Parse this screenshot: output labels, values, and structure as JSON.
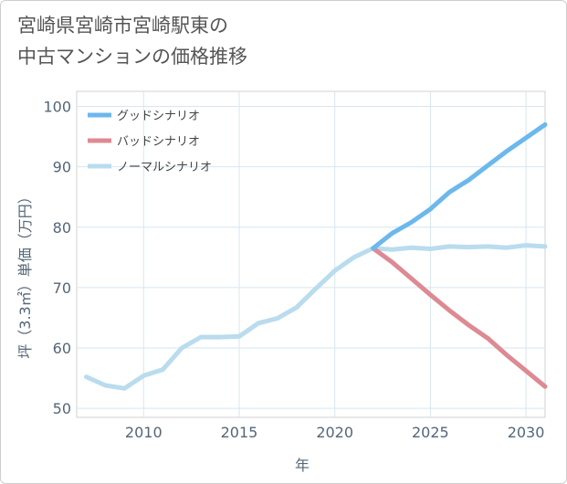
{
  "title_lines": [
    "宮崎県宮崎市宮崎駅東の",
    "中古マンションの価格推移"
  ],
  "chart_data": {
    "type": "line",
    "title": "宮崎県宮崎市宮崎駅東の中古マンションの価格推移",
    "xlabel": "年",
    "ylabel": "坪（3.3㎡）単価（万円）",
    "xlim": [
      2006.5,
      2031
    ],
    "ylim": [
      48.5,
      102.5
    ],
    "xticks": [
      2010,
      2015,
      2020,
      2025,
      2030
    ],
    "yticks": [
      50,
      60,
      70,
      80,
      90,
      100
    ],
    "grid": true,
    "legend_position": "top-left",
    "series": [
      {
        "name": "グッドシナリオ",
        "color": "#6cb8ec",
        "x": [
          2022,
          2023,
          2024,
          2025,
          2026,
          2027,
          2028,
          2029,
          2030,
          2031
        ],
        "values": [
          76.5,
          79.0,
          80.8,
          83.0,
          85.8,
          87.8,
          90.2,
          92.6,
          94.8,
          97.0
        ]
      },
      {
        "name": "バッドシナリオ",
        "color": "#dd8a93",
        "x": [
          2022,
          2023,
          2024,
          2025,
          2026,
          2027,
          2028,
          2029,
          2030,
          2031
        ],
        "values": [
          76.5,
          74.2,
          71.5,
          68.8,
          66.2,
          63.8,
          61.6,
          58.8,
          56.2,
          53.6
        ]
      },
      {
        "name": "ノーマルシナリオ",
        "color": "#b9dcee",
        "x": [
          2007,
          2008,
          2009,
          2010,
          2011,
          2012,
          2013,
          2014,
          2015,
          2016,
          2017,
          2018,
          2019,
          2020,
          2021,
          2022,
          2023,
          2024,
          2025,
          2026,
          2027,
          2028,
          2029,
          2030,
          2031
        ],
        "values": [
          55.2,
          53.8,
          53.3,
          55.4,
          56.4,
          60.0,
          61.8,
          61.8,
          61.9,
          64.1,
          64.9,
          66.7,
          69.8,
          72.8,
          75.0,
          76.5,
          76.3,
          76.6,
          76.4,
          76.8,
          76.7,
          76.8,
          76.6,
          77.0,
          76.8
        ]
      }
    ]
  }
}
